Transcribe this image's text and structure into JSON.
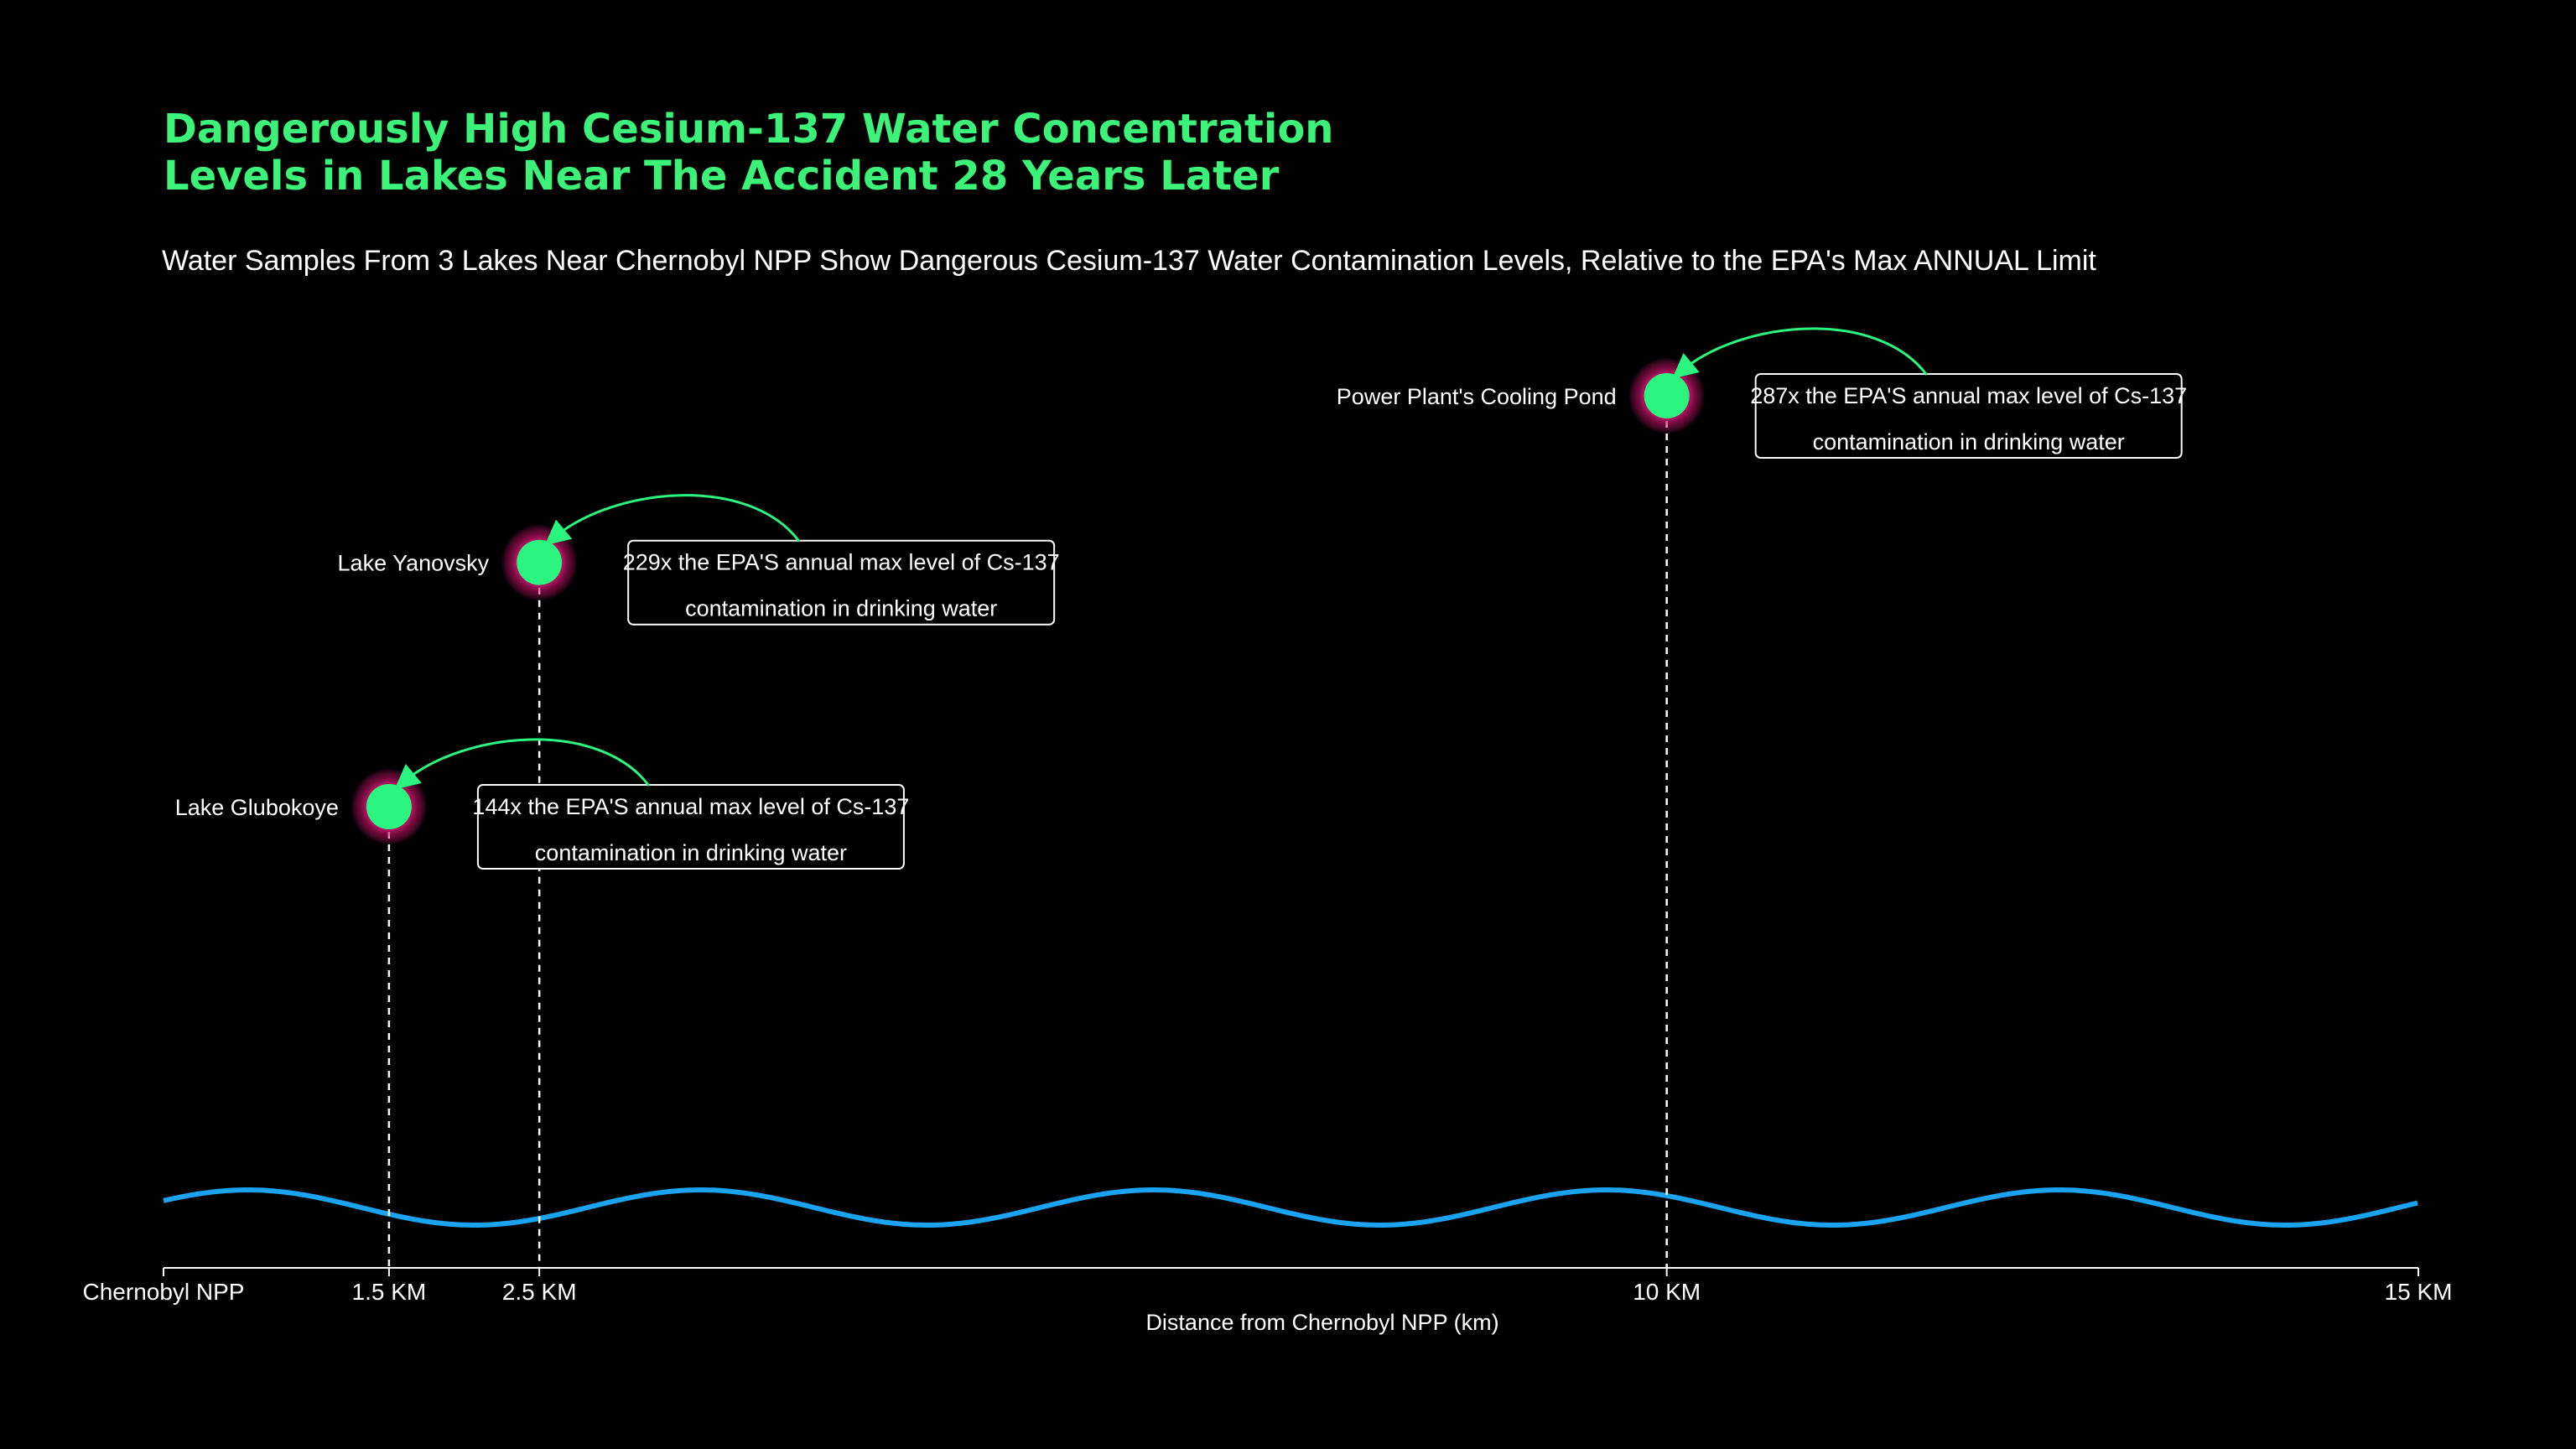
{
  "colors": {
    "background": "#000000",
    "title": "#3df279",
    "point_fill": "#2bf57e",
    "point_glow": "#ff1f8e",
    "wave": "#1aa3f0",
    "axis": "#ffffff",
    "arrow": "#2bf57e"
  },
  "chart_data": {
    "type": "scatter",
    "title": [
      "Dangerously High Cesium-137 Water Concentration",
      "Levels in Lakes Near The Accident 28 Years Later"
    ],
    "subtitle": "Water Samples From 3 Lakes Near Chernobyl NPP Show Dangerous Cesium-137 Water Contamination Levels, Relative to the EPA's Max ANNUAL Limit",
    "xlabel": "Distance from Chernobyl NPP (km)",
    "xlim": [
      0,
      15
    ],
    "x_ticks": [
      {
        "value": 0,
        "label": "Chernobyl NPP"
      },
      {
        "value": 1.5,
        "label": "1.5 KM"
      },
      {
        "value": 2.5,
        "label": "2.5 KM"
      },
      {
        "value": 10,
        "label": "10 KM"
      },
      {
        "value": 15,
        "label": "15 KM"
      }
    ],
    "y_unit": "x the EPA's annual max level of Cs-137",
    "ylim": [
      0,
      300
    ],
    "points": [
      {
        "name": "Lake Glubokoye",
        "x": 1.5,
        "y": 144,
        "annotation": [
          "144x the EPA'S annual max level of Cs-137",
          "contamination in drinking water"
        ]
      },
      {
        "name": "Lake Yanovsky",
        "x": 2.5,
        "y": 229,
        "annotation": [
          "229x the EPA'S annual max level of Cs-137",
          "contamination in drinking water"
        ]
      },
      {
        "name": "Power Plant's Cooling Pond",
        "x": 10,
        "y": 287,
        "annotation": [
          "287x the EPA'S annual max level of Cs-137",
          "contamination in drinking water"
        ]
      }
    ],
    "grid": false,
    "legend": "none"
  }
}
